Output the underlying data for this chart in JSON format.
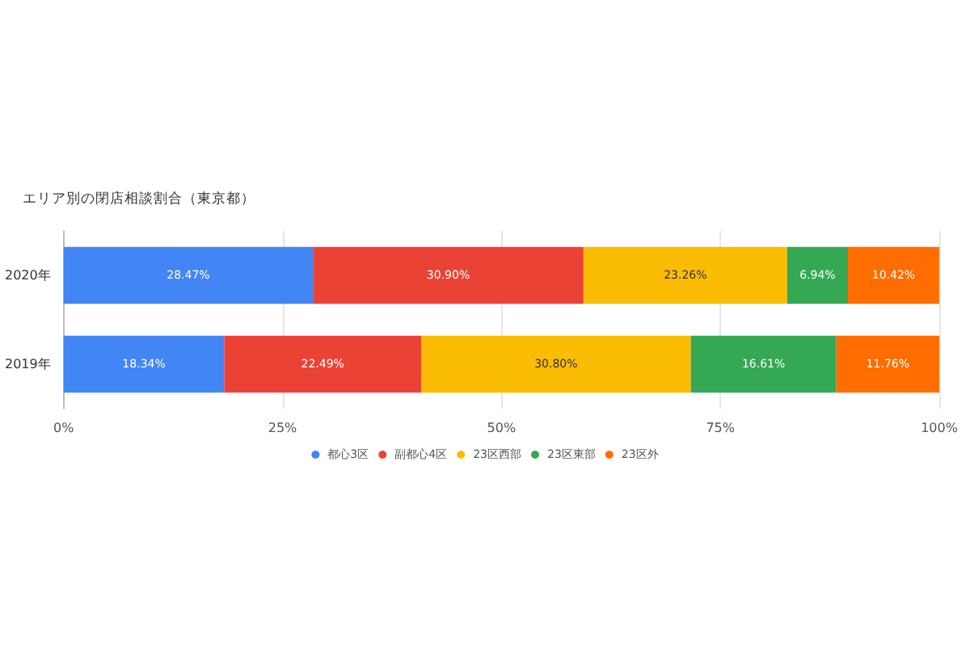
{
  "chart_data": {
    "type": "bar",
    "orientation": "horizontal",
    "stacked": true,
    "title": "エリア別の閉店相談割合（東京都）",
    "categories": [
      "2020年",
      "2019年"
    ],
    "series": [
      {
        "name": "都心3区",
        "color": "#4285f4",
        "values": [
          28.47,
          18.34
        ],
        "value_labels": [
          "28.47%",
          "18.34%"
        ]
      },
      {
        "name": "副都心4区",
        "color": "#ea4335",
        "values": [
          30.9,
          22.49
        ],
        "value_labels": [
          "30.90%",
          "22.49%"
        ]
      },
      {
        "name": "23区西部",
        "color": "#fbbc04",
        "values": [
          23.26,
          30.8
        ],
        "value_labels": [
          "23.26%",
          "30.80%"
        ]
      },
      {
        "name": "23区東部",
        "color": "#34a853",
        "values": [
          6.94,
          16.61
        ],
        "value_labels": [
          "6.94%",
          "16.61%"
        ]
      },
      {
        "name": "23区外",
        "color": "#ff6d01",
        "values": [
          10.42,
          11.76
        ],
        "value_labels": [
          "10.42%",
          "11.76%"
        ]
      }
    ],
    "xlim": [
      0,
      100
    ],
    "xticks": [
      {
        "value": 0,
        "label": "0%"
      },
      {
        "value": 25,
        "label": "25%"
      },
      {
        "value": 50,
        "label": "50%"
      },
      {
        "value": 75,
        "label": "75%"
      },
      {
        "value": 100,
        "label": "100%"
      }
    ],
    "grid": "x",
    "legend": "bottom"
  }
}
